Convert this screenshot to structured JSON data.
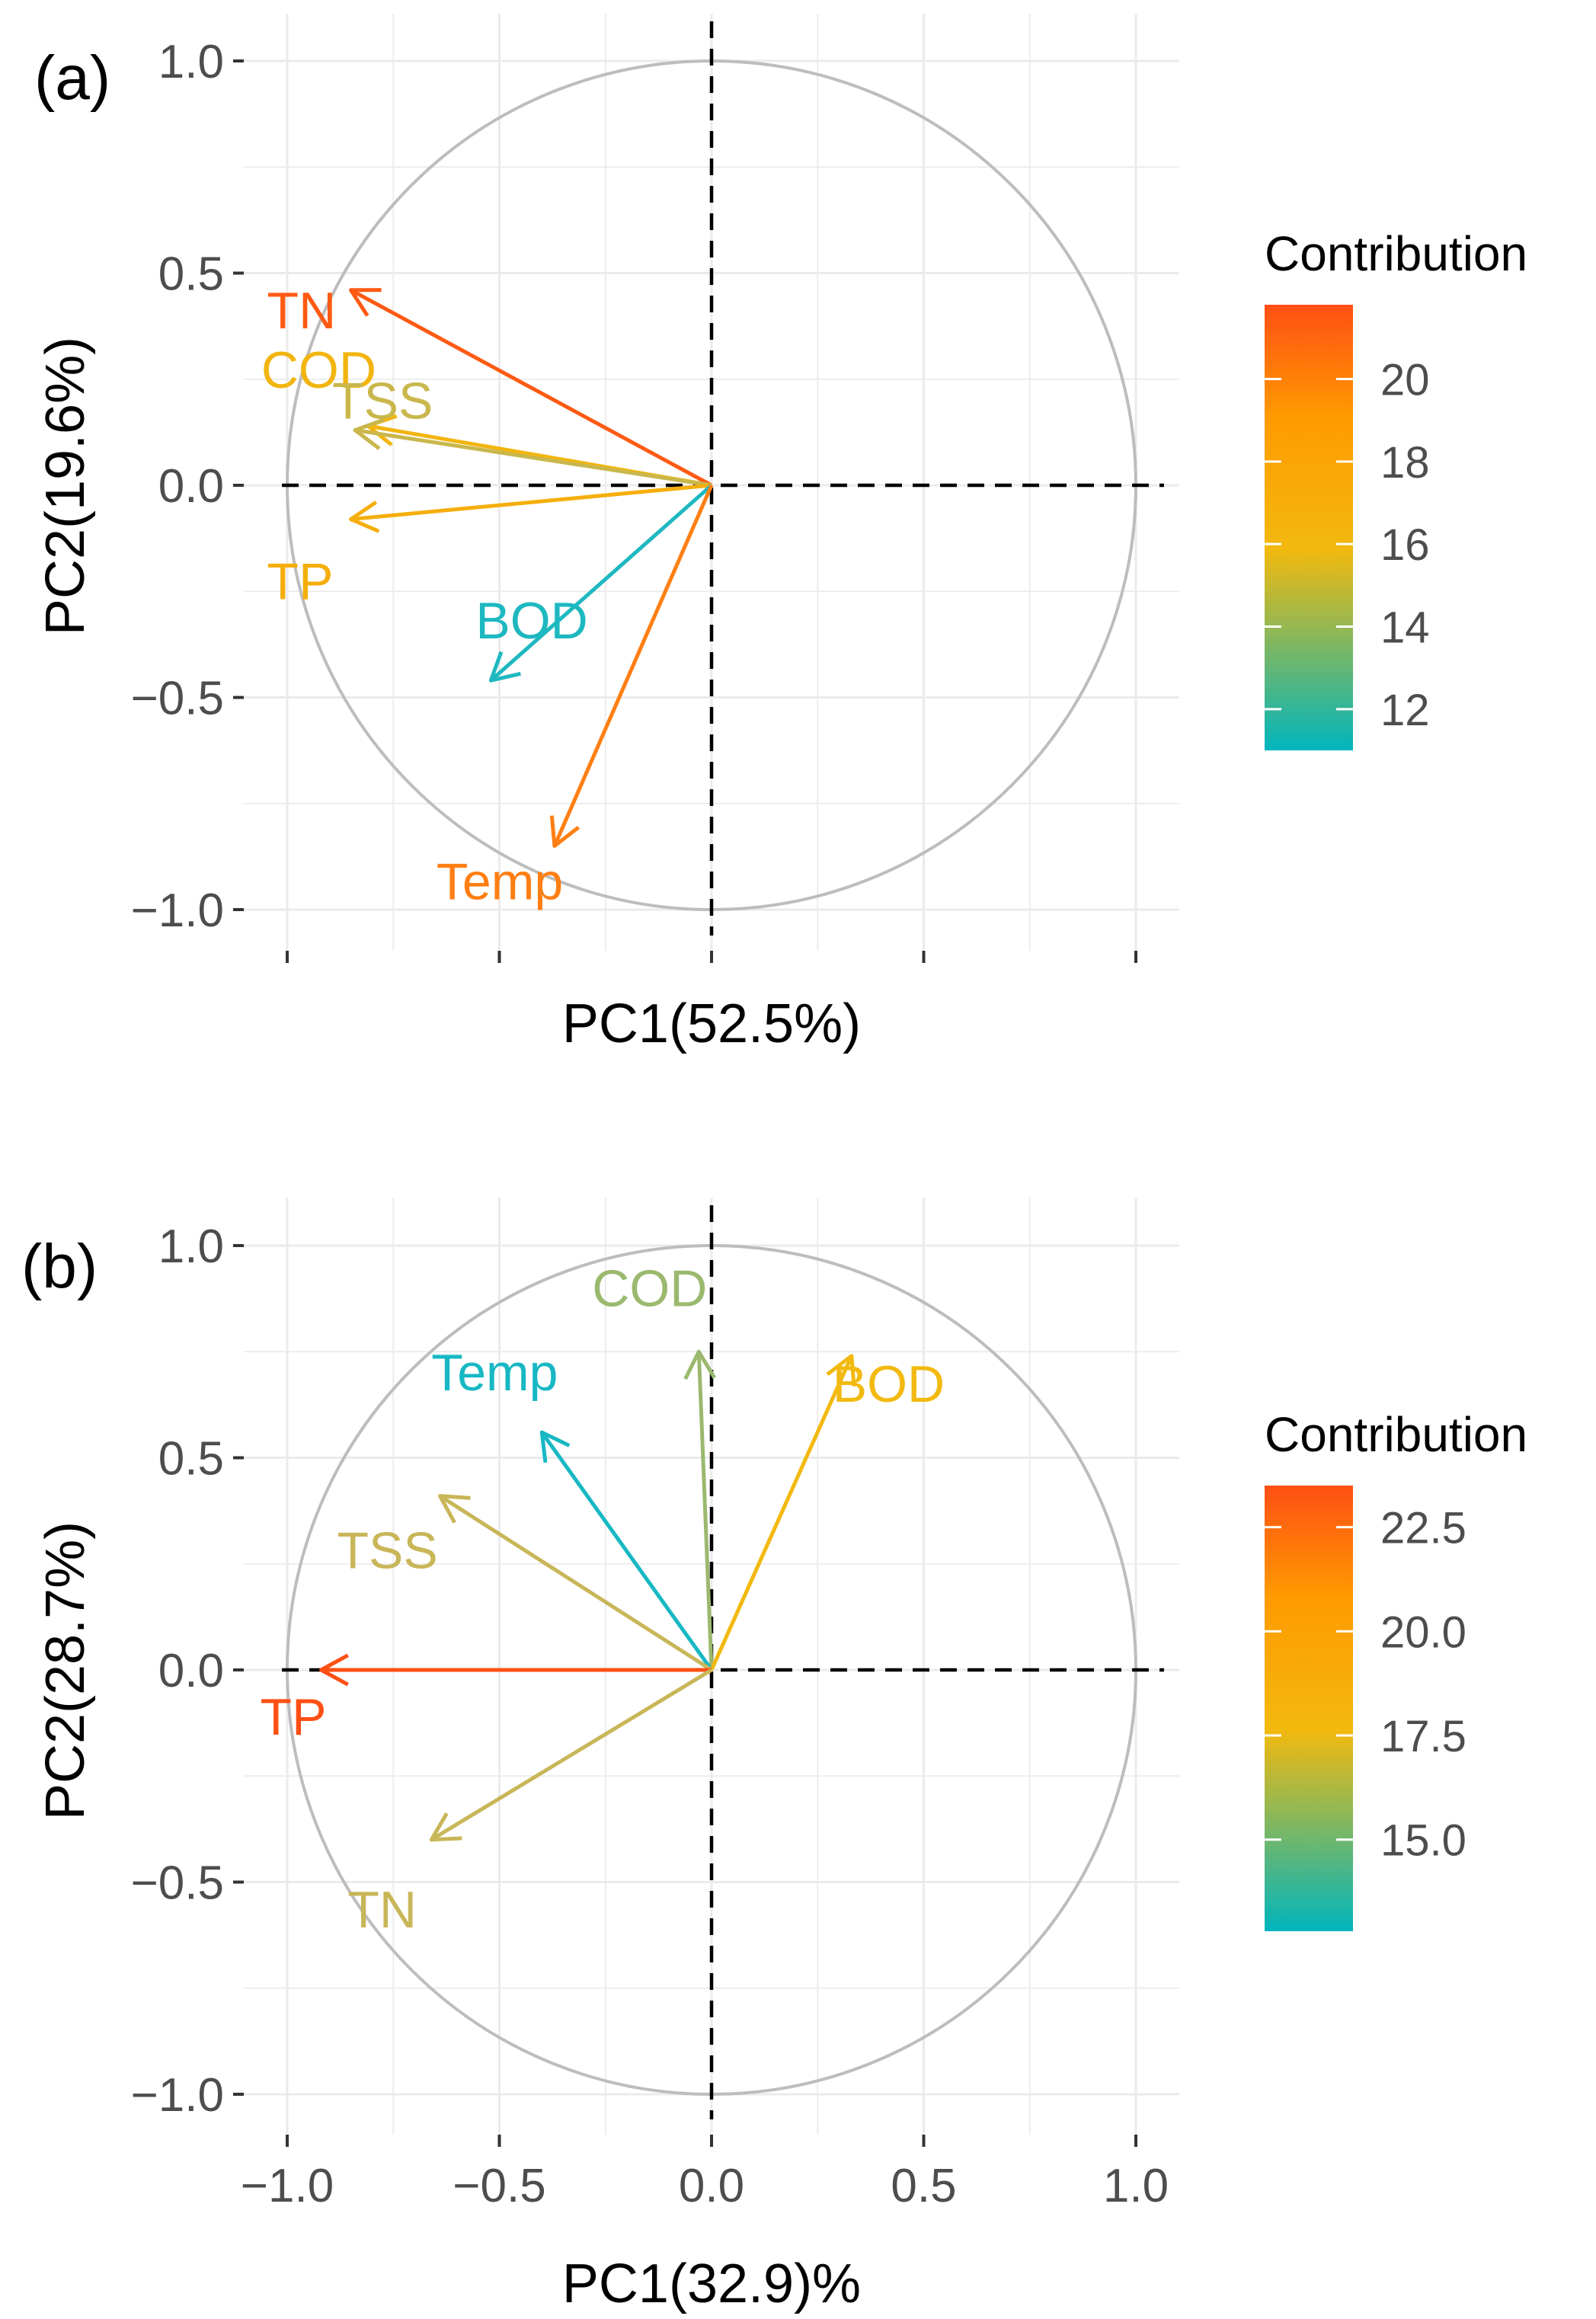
{
  "chart_data": [
    {
      "type": "scatter",
      "subtype": "pca-variable-correlation-circle",
      "panel_label": "(a)",
      "xlabel": "PC1(52.5%)",
      "ylabel": "PC2(19.6%)",
      "xlim": [
        -1.0,
        1.0
      ],
      "ylim": [
        -1.0,
        1.0
      ],
      "x_ticks": [
        -1.0,
        -0.5,
        0.0,
        0.5,
        1.0
      ],
      "x_tick_labels_visible": false,
      "y_ticks": [
        1.0,
        0.5,
        0.0,
        -0.5,
        -1.0
      ],
      "y_tick_labels": [
        "1.0",
        "0.5",
        "0.0",
        "−0.5",
        "−1.0"
      ],
      "grid": true,
      "unit_circle": true,
      "legend": {
        "title": "Contribution",
        "position": "right",
        "range": [
          11.0,
          21.8
        ],
        "ticks": [
          20,
          18,
          16,
          14,
          12
        ],
        "tick_labels": [
          "20",
          "18",
          "16",
          "14",
          "12"
        ]
      },
      "variables": [
        {
          "name": "TN",
          "x": -0.85,
          "y": 0.46,
          "contribution": 21.5,
          "color": "#FF5A14"
        },
        {
          "name": "COD",
          "x": -0.81,
          "y": 0.14,
          "contribution": 16.5,
          "color": "#F2B50F"
        },
        {
          "name": "TSS",
          "x": -0.84,
          "y": 0.13,
          "contribution": 15.2,
          "color": "#C9B74C"
        },
        {
          "name": "TP",
          "x": -0.85,
          "y": -0.08,
          "contribution": 16.8,
          "color": "#F5AE0C"
        },
        {
          "name": "BOD",
          "x": -0.52,
          "y": -0.46,
          "contribution": 11.5,
          "color": "#1EB8C0"
        },
        {
          "name": "Temp",
          "x": -0.37,
          "y": -0.85,
          "contribution": 19.5,
          "color": "#FF7F14"
        }
      ]
    },
    {
      "type": "scatter",
      "subtype": "pca-variable-correlation-circle",
      "panel_label": "(b)",
      "xlabel": "PC1(32.9)%",
      "ylabel": "PC2(28.7%)",
      "xlim": [
        -1.0,
        1.0
      ],
      "ylim": [
        -1.0,
        1.0
      ],
      "x_ticks": [
        -1.0,
        -0.5,
        0.0,
        0.5,
        1.0
      ],
      "x_tick_labels": [
        "−1.0",
        "−0.5",
        "0.0",
        "0.5",
        "1.0"
      ],
      "x_tick_labels_visible": true,
      "y_ticks": [
        1.0,
        0.5,
        0.0,
        -0.5,
        -1.0
      ],
      "y_tick_labels": [
        "1.0",
        "0.5",
        "0.0",
        "−0.5",
        "−1.0"
      ],
      "grid": true,
      "unit_circle": true,
      "legend": {
        "title": "Contribution",
        "position": "right",
        "range": [
          12.8,
          23.5
        ],
        "ticks": [
          22.5,
          20.0,
          17.5,
          15.0
        ],
        "tick_labels": [
          "22.5",
          "20.0",
          "17.5",
          "15.0"
        ]
      },
      "variables": [
        {
          "name": "COD",
          "x": -0.03,
          "y": 0.75,
          "contribution": 14.8,
          "color": "#9BB96E"
        },
        {
          "name": "Temp",
          "x": -0.4,
          "y": 0.56,
          "contribution": 13.0,
          "color": "#17B8C4"
        },
        {
          "name": "BOD",
          "x": 0.33,
          "y": 0.74,
          "contribution": 17.8,
          "color": "#F2B90F"
        },
        {
          "name": "TSS",
          "x": -0.64,
          "y": 0.41,
          "contribution": 16.0,
          "color": "#C8B658"
        },
        {
          "name": "TP",
          "x": -0.92,
          "y": 0.0,
          "contribution": 23.3,
          "color": "#FF4F14"
        },
        {
          "name": "TN",
          "x": -0.66,
          "y": -0.4,
          "contribution": 16.0,
          "color": "#C8B658"
        }
      ]
    }
  ]
}
